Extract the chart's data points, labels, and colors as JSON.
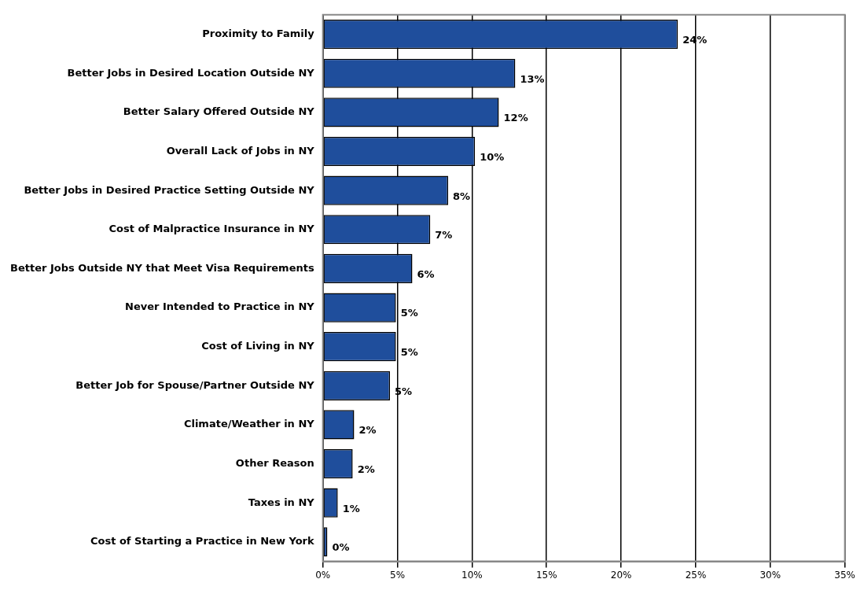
{
  "chart_data": {
    "type": "bar",
    "orientation": "horizontal",
    "categories": [
      "Proximity to Family",
      "Better Jobs in Desired Location Outside NY",
      "Better Salary Offered Outside NY",
      "Overall Lack of Jobs in NY",
      "Better Jobs in Desired Practice Setting Outside NY",
      "Cost of Malpractice Insurance in NY",
      "Better Jobs Outside NY that Meet Visa Requirements",
      "Never Intended to Practice in NY",
      "Cost of Living in NY",
      "Better Job for Spouse/Partner Outside NY",
      "Climate/Weather in NY",
      "Other Reason",
      "Taxes in NY",
      "Cost of Starting a Practice in New York"
    ],
    "values": [
      23.8,
      12.9,
      11.8,
      10.2,
      8.4,
      7.2,
      6.0,
      4.9,
      4.9,
      4.5,
      2.1,
      2.0,
      1.0,
      0.3
    ],
    "value_labels": [
      "24%",
      "13%",
      "12%",
      "10%",
      "8%",
      "7%",
      "6%",
      "5%",
      "5%",
      "5%",
      "2%",
      "2%",
      "1%",
      "0%"
    ],
    "color": "#1f4e9c",
    "xlim": [
      0,
      35
    ],
    "xticks": [
      {
        "value": 0,
        "label": "0%"
      },
      {
        "value": 5,
        "label": "5%"
      },
      {
        "value": 10,
        "label": "10%"
      },
      {
        "value": 15,
        "label": "15%"
      },
      {
        "value": 20,
        "label": "20%"
      },
      {
        "value": 25,
        "label": "25%"
      },
      {
        "value": 30,
        "label": "30%"
      },
      {
        "value": 35,
        "label": "35%"
      }
    ],
    "grid": "x"
  }
}
